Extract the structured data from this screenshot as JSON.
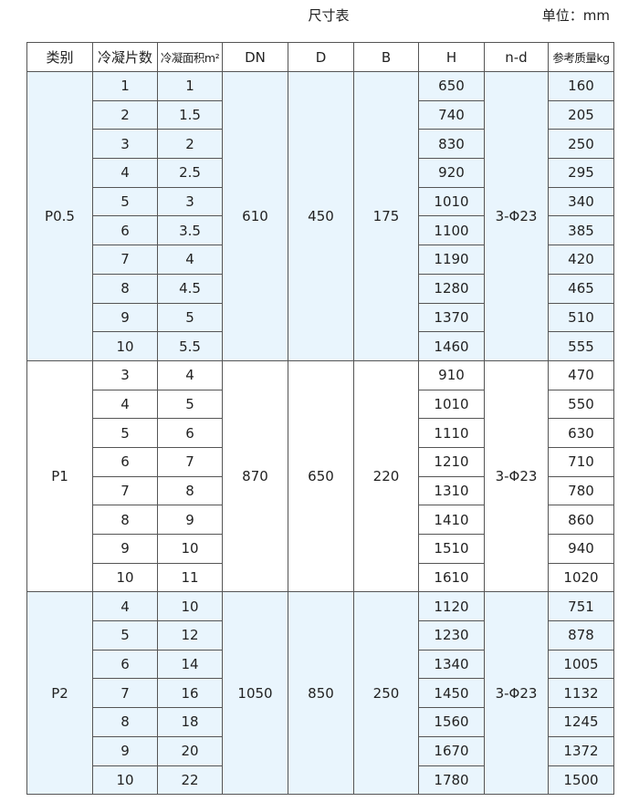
{
  "title": "尺寸表",
  "unit": "单位：mm",
  "colors": {
    "row_tint": "#e9f5fd",
    "border": "#555555"
  },
  "headers": [
    "类别",
    "冷凝片数",
    "冷凝面积m²",
    "DN",
    "D",
    "B",
    "H",
    "n-d",
    "参考质量kg"
  ],
  "groups": [
    {
      "category": "P0.5",
      "DN": "610",
      "D": "450",
      "B": "175",
      "nd": "3-Φ23",
      "rows": [
        {
          "pieces": "1",
          "area": "1",
          "H": "650",
          "mass": "160"
        },
        {
          "pieces": "2",
          "area": "1.5",
          "H": "740",
          "mass": "205"
        },
        {
          "pieces": "3",
          "area": "2",
          "H": "830",
          "mass": "250"
        },
        {
          "pieces": "4",
          "area": "2.5",
          "H": "920",
          "mass": "295"
        },
        {
          "pieces": "5",
          "area": "3",
          "H": "1010",
          "mass": "340"
        },
        {
          "pieces": "6",
          "area": "3.5",
          "H": "1100",
          "mass": "385"
        },
        {
          "pieces": "7",
          "area": "4",
          "H": "1190",
          "mass": "420"
        },
        {
          "pieces": "8",
          "area": "4.5",
          "H": "1280",
          "mass": "465"
        },
        {
          "pieces": "9",
          "area": "5",
          "H": "1370",
          "mass": "510"
        },
        {
          "pieces": "10",
          "area": "5.5",
          "H": "1460",
          "mass": "555"
        }
      ]
    },
    {
      "category": "P1",
      "DN": "870",
      "D": "650",
      "B": "220",
      "nd": "3-Φ23",
      "rows": [
        {
          "pieces": "3",
          "area": "4",
          "H": "910",
          "mass": "470"
        },
        {
          "pieces": "4",
          "area": "5",
          "H": "1010",
          "mass": "550"
        },
        {
          "pieces": "5",
          "area": "6",
          "H": "1110",
          "mass": "630"
        },
        {
          "pieces": "6",
          "area": "7",
          "H": "1210",
          "mass": "710"
        },
        {
          "pieces": "7",
          "area": "8",
          "H": "1310",
          "mass": "780"
        },
        {
          "pieces": "8",
          "area": "9",
          "H": "1410",
          "mass": "860"
        },
        {
          "pieces": "9",
          "area": "10",
          "H": "1510",
          "mass": "940"
        },
        {
          "pieces": "10",
          "area": "11",
          "H": "1610",
          "mass": "1020"
        }
      ]
    },
    {
      "category": "P2",
      "DN": "1050",
      "D": "850",
      "B": "250",
      "nd": "3-Φ23",
      "rows": [
        {
          "pieces": "4",
          "area": "10",
          "H": "1120",
          "mass": "751"
        },
        {
          "pieces": "5",
          "area": "12",
          "H": "1230",
          "mass": "878"
        },
        {
          "pieces": "6",
          "area": "14",
          "H": "1340",
          "mass": "1005"
        },
        {
          "pieces": "7",
          "area": "16",
          "H": "1450",
          "mass": "1132"
        },
        {
          "pieces": "8",
          "area": "18",
          "H": "1560",
          "mass": "1245"
        },
        {
          "pieces": "9",
          "area": "20",
          "H": "1670",
          "mass": "1372"
        },
        {
          "pieces": "10",
          "area": "22",
          "H": "1780",
          "mass": "1500"
        }
      ]
    }
  ]
}
